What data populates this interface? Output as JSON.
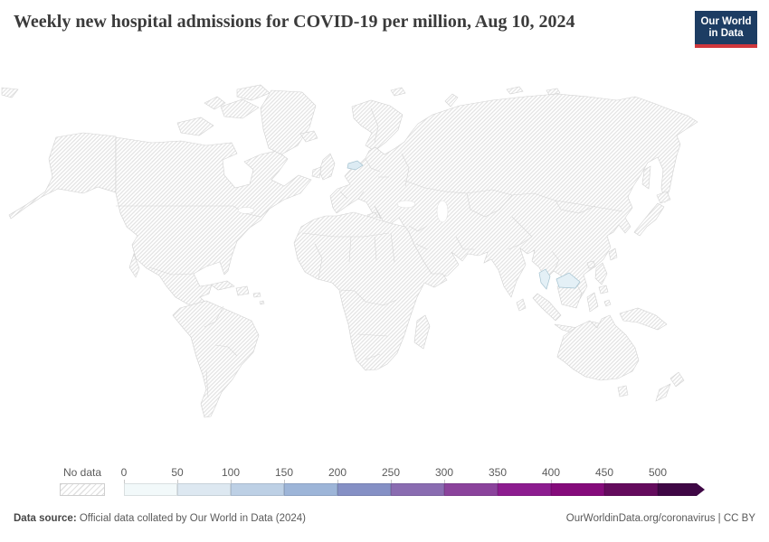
{
  "header": {
    "title": "Weekly new hospital admissions for COVID-19 per million, Aug 10, 2024",
    "logo": {
      "line1": "Our World",
      "line2": "in Data",
      "bg_color": "#1d3d63",
      "accent_color": "#d0373c"
    }
  },
  "map": {
    "no_data_pattern": "diagonal-hatch",
    "land_border_color": "#d2d2d2",
    "hatch_color": "#e2e2e2",
    "highlighted_countries": [
      {
        "name": "Czechia",
        "fill": "#dcebf3"
      },
      {
        "name": "Malaysia",
        "fill": "#e4f0f6"
      }
    ]
  },
  "legend": {
    "no_data_label": "No data",
    "tick_labels": [
      "0",
      "50",
      "100",
      "150",
      "200",
      "250",
      "300",
      "350",
      "400",
      "450",
      "500"
    ],
    "bin_colors": [
      "#f2f9fa",
      "#dde8f1",
      "#bdd0e5",
      "#9db5d8",
      "#8590c5",
      "#8a6cb1",
      "#8b439c",
      "#8d1c90",
      "#850b7b",
      "#640b5d",
      "#3f0745"
    ]
  },
  "footer": {
    "source_label": "Data source:",
    "source_text": " Official data collated by Our World in Data (2024)",
    "link_text": "OurWorldinData.org/coronavirus",
    "separator": " | ",
    "license_text": "CC BY"
  },
  "chart_data": {
    "type": "heatmap",
    "subtype": "choropleth-world-map",
    "title": "Weekly new hospital admissions for COVID-19 per million, Aug 10, 2024",
    "unit": "weekly new hospital admissions per million people",
    "legend_bins": [
      0,
      50,
      100,
      150,
      200,
      250,
      300,
      350,
      400,
      450,
      500
    ],
    "legend_bin_colors": [
      "#f2f9fa",
      "#dde8f1",
      "#bdd0e5",
      "#9db5d8",
      "#8590c5",
      "#8a6cb1",
      "#8b439c",
      "#8d1c90",
      "#850b7b",
      "#640b5d",
      "#3f0745"
    ],
    "legend_open_ended_above": 500,
    "data_points": [
      {
        "entity": "Czechia",
        "value_bin": "0-100 (lightest shades)"
      },
      {
        "entity": "Malaysia",
        "value_bin": "0-100 (lightest shades)"
      }
    ],
    "no_data_note": "All other countries/regions are shown with the hatched 'No data' pattern",
    "legend_position": "bottom",
    "grid": false
  }
}
